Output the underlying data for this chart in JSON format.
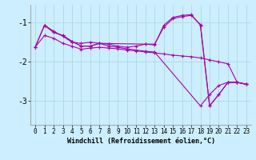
{
  "bg_color": "#cceeff",
  "line_color": "#aa00aa",
  "grid_color": "#aadddd",
  "xlabel": "Windchill (Refroidissement éolien,°C)",
  "xlabel_fontsize": 6.0,
  "tick_fontsize": 5.5,
  "ytick_fontsize": 7.0,
  "xlim": [
    -0.5,
    23.5
  ],
  "ylim": [
    -3.6,
    -0.55
  ],
  "yticks": [
    -1,
    -2,
    -3
  ],
  "xticks": [
    0,
    1,
    2,
    3,
    4,
    5,
    6,
    7,
    8,
    9,
    10,
    11,
    12,
    13,
    14,
    15,
    16,
    17,
    18,
    19,
    20,
    21,
    22,
    23
  ],
  "series": [
    [
      1.0,
      -1.07,
      2.0,
      -1.22,
      3.0,
      -1.35,
      4.0,
      -1.5,
      5.0,
      -1.53,
      6.0,
      -1.5,
      7.0,
      -1.53,
      8.0,
      -1.6,
      9.0,
      -1.63,
      10.0,
      -1.67,
      11.0,
      -1.7,
      12.0,
      -1.73,
      13.0,
      -1.75,
      18.0,
      -3.12,
      19.0,
      -2.83,
      20.0,
      -2.6,
      21.0,
      -2.52,
      22.0,
      -2.52,
      23.0,
      -2.57
    ],
    [
      0.0,
      -1.62,
      1.0,
      -1.33,
      2.0,
      -1.4,
      3.0,
      -1.53,
      4.0,
      -1.6,
      5.0,
      -1.68,
      6.0,
      -1.65,
      7.0,
      -1.63,
      8.0,
      -1.65,
      9.0,
      -1.67,
      10.0,
      -1.7,
      11.0,
      -1.72,
      12.0,
      -1.75,
      13.0,
      -1.77,
      14.0,
      -1.8,
      15.0,
      -1.83,
      16.0,
      -1.85,
      17.0,
      -1.87,
      18.0,
      -1.9,
      19.0,
      -1.95,
      20.0,
      -2.0,
      21.0,
      -2.05,
      22.0,
      -2.52,
      23.0,
      -2.57
    ],
    [
      0.0,
      -1.62,
      1.0,
      -1.07,
      2.0,
      -1.25,
      3.0,
      -1.33,
      4.0,
      -1.48,
      5.0,
      -1.6,
      6.0,
      -1.6,
      7.0,
      -1.53,
      8.0,
      -1.55,
      9.0,
      -1.6,
      10.0,
      -1.63,
      11.0,
      -1.6,
      12.0,
      -1.55,
      13.0,
      -1.57,
      14.0,
      -1.07,
      15.0,
      -0.87,
      16.0,
      -0.82,
      17.0,
      -0.8,
      18.0,
      -1.07,
      19.0,
      -3.12,
      20.0,
      -2.83,
      21.0,
      -2.52,
      22.0,
      -2.52,
      23.0,
      -2.57
    ],
    [
      0.0,
      -1.62,
      1.0,
      -1.07,
      2.0,
      -1.25,
      3.0,
      -1.33,
      4.0,
      -1.48,
      5.0,
      -1.6,
      6.0,
      -1.6,
      7.0,
      -1.53,
      12.0,
      -1.55,
      13.0,
      -1.55,
      14.0,
      -1.12,
      15.0,
      -0.9,
      16.0,
      -0.85,
      17.0,
      -0.82,
      18.0,
      -1.05,
      19.0,
      -3.12,
      20.0,
      -2.83,
      21.0,
      -2.52,
      22.0,
      -2.52,
      23.0,
      -2.57
    ]
  ]
}
